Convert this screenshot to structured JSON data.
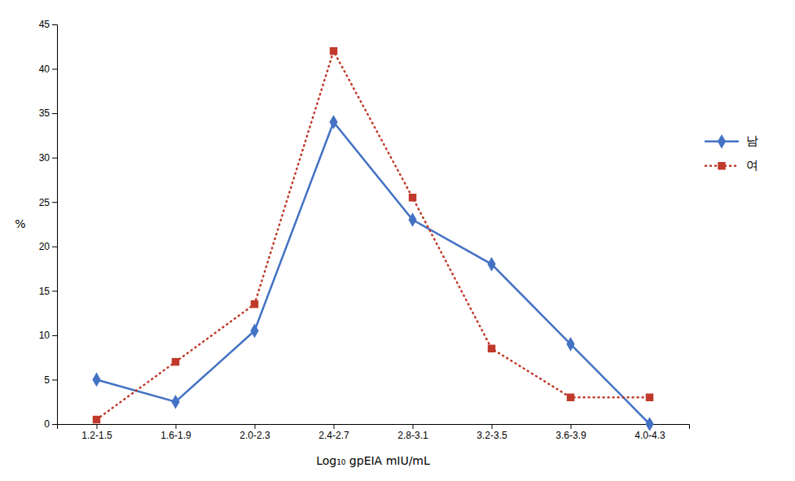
{
  "chart_data": {
    "type": "line",
    "categories": [
      "1.2-1.5",
      "1.6-1.9",
      "2.0-2.3",
      "2.4-2.7",
      "2.8-3.1",
      "3.2-3.5",
      "3.6-3.9",
      "4.0-4.3"
    ],
    "series": [
      {
        "name": "남",
        "color": "#4472C4",
        "values": [
          5,
          2.5,
          10.5,
          34,
          23,
          18,
          9,
          0
        ],
        "marker": "diamond",
        "line_style": "solid"
      },
      {
        "name": "여",
        "color": "#C0392B",
        "values": [
          0.5,
          7,
          13.5,
          42,
          25.5,
          8.5,
          3,
          3
        ],
        "marker": "square",
        "line_style": "dotted"
      }
    ],
    "xlabel": "Log₁₀ gpEIA mIU/mL",
    "ylabel": "%",
    "ylim": [
      0,
      45
    ],
    "yticks": [
      0,
      5,
      10,
      15,
      20,
      25,
      30,
      35,
      40,
      45
    ],
    "grid": false,
    "legend": "right"
  }
}
